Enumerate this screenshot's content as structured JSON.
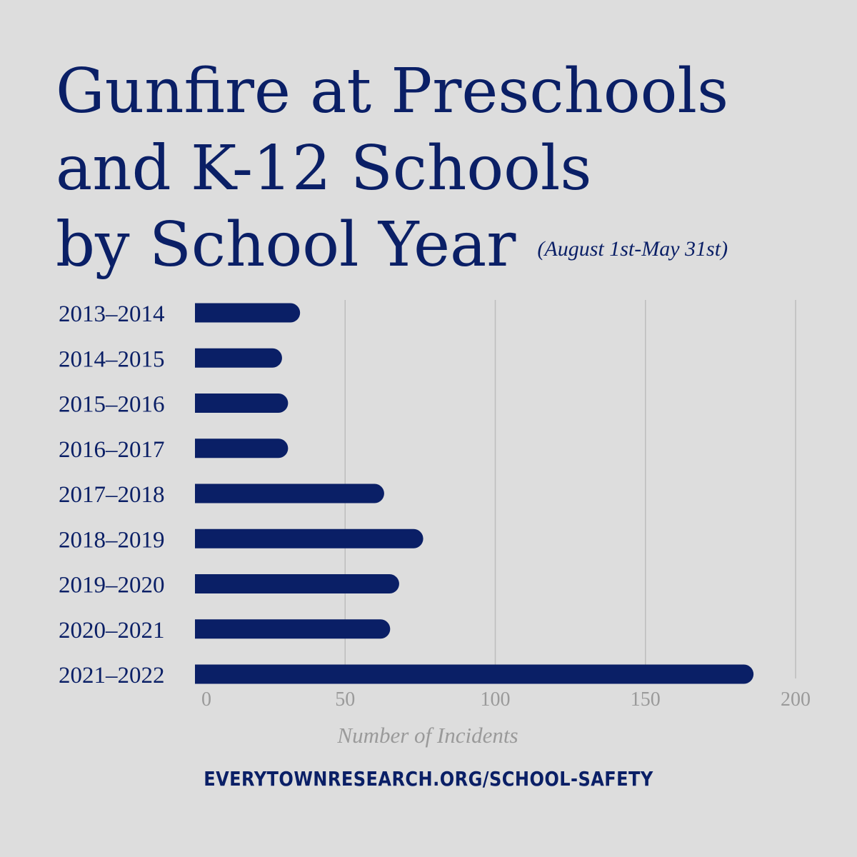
{
  "title": {
    "line1": "Gunfire at Preschools",
    "line2": "and K-12 Schools",
    "line3": "by School Year",
    "subtitle": "(August 1st-May 31st)"
  },
  "footer": {
    "url": "EVERYTOWNRESEARCH.ORG/SCHOOL-SAFETY"
  },
  "colors": {
    "bar": "#0a1f66",
    "grid": "#bdbdbd",
    "background": "#dddddd",
    "muted_text": "#9a9a9a"
  },
  "chart_data": {
    "type": "bar",
    "orientation": "horizontal",
    "title": "Gunfire at Preschools and K-12 Schools by School Year",
    "subtitle": "(August 1st-May 31st)",
    "xlabel": "Number of Incidents",
    "ylabel": "",
    "categories": [
      "2013–2014",
      "2014–2015",
      "2015–2016",
      "2016–2017",
      "2017–2018",
      "2018–2019",
      "2019–2020",
      "2020–2021",
      "2021–2022"
    ],
    "values": [
      35,
      29,
      31,
      31,
      63,
      76,
      68,
      65,
      186
    ],
    "xlim": [
      0,
      200
    ],
    "xticks": [
      "0",
      "50",
      "100",
      "150",
      "200"
    ],
    "grid": "vertical",
    "legend": "none"
  }
}
